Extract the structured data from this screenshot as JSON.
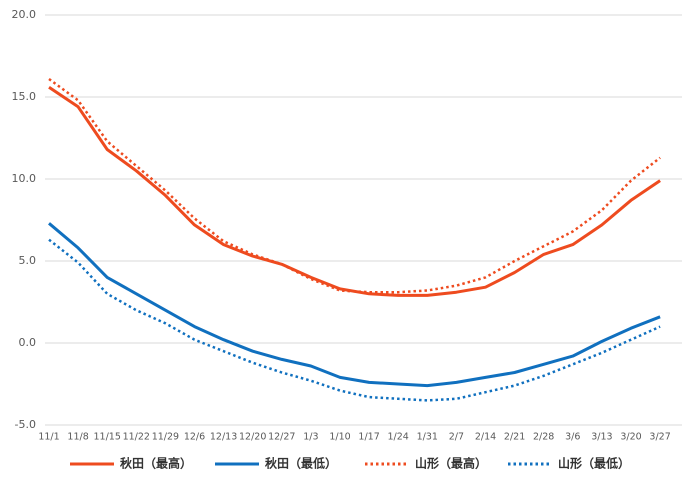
{
  "chart_data": {
    "type": "line",
    "categories": [
      "11/1",
      "11/8",
      "11/15",
      "11/22",
      "11/29",
      "12/6",
      "12/13",
      "12/20",
      "12/27",
      "1/3",
      "1/10",
      "1/17",
      "1/24",
      "1/31",
      "2/7",
      "2/14",
      "2/21",
      "2/28",
      "3/6",
      "3/13",
      "3/20",
      "3/27"
    ],
    "series": [
      {
        "name": "秋田（最高）",
        "color": "#ee4b1f",
        "dash": "solid",
        "values": [
          15.6,
          14.4,
          11.8,
          10.5,
          9.0,
          7.2,
          6.0,
          5.3,
          4.8,
          4.0,
          3.3,
          3.0,
          2.9,
          2.9,
          3.1,
          3.4,
          4.3,
          5.4,
          6.0,
          7.2,
          8.7,
          9.9
        ]
      },
      {
        "name": "秋田（最低）",
        "color": "#1070bf",
        "dash": "solid",
        "values": [
          7.3,
          5.8,
          4.0,
          3.0,
          2.0,
          1.0,
          0.2,
          -0.5,
          -1.0,
          -1.4,
          -2.1,
          -2.4,
          -2.5,
          -2.6,
          -2.4,
          -2.1,
          -1.8,
          -1.3,
          -0.8,
          0.1,
          0.9,
          1.6
        ]
      },
      {
        "name": "山形（最高）",
        "color": "#ee4b1f",
        "dash": "dotted",
        "values": [
          16.1,
          14.8,
          12.3,
          10.8,
          9.3,
          7.6,
          6.2,
          5.4,
          4.8,
          3.9,
          3.2,
          3.1,
          3.1,
          3.2,
          3.5,
          4.0,
          5.0,
          5.9,
          6.8,
          8.1,
          9.9,
          11.3
        ]
      },
      {
        "name": "山形（最低）",
        "color": "#1070bf",
        "dash": "dotted",
        "values": [
          6.3,
          4.9,
          3.0,
          2.0,
          1.2,
          0.2,
          -0.5,
          -1.2,
          -1.8,
          -2.3,
          -2.9,
          -3.3,
          -3.4,
          -3.5,
          -3.4,
          -3.0,
          -2.6,
          -2.0,
          -1.3,
          -0.6,
          0.2,
          1.0
        ]
      }
    ],
    "ylim": [
      -5,
      20
    ],
    "yticks": [
      {
        "value": -5,
        "label": "-5.0"
      },
      {
        "value": 0,
        "label": "0.0"
      },
      {
        "value": 5,
        "label": "5.0"
      },
      {
        "value": 10,
        "label": "10.0"
      },
      {
        "value": 15,
        "label": "15.0"
      },
      {
        "value": 20,
        "label": "20.0"
      }
    ],
    "grid": true,
    "legend": "bottom"
  }
}
